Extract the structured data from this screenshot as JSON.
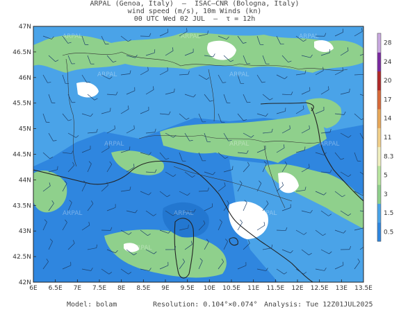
{
  "header": {
    "line1": "ARPAL (Genoa, Italy)  —  ISAC–CNR (Bologna, Italy)",
    "line2": "wind speed (m/s), 10m Winds (kn)",
    "line3": "00 UTC Wed 02 JUL  —  τ = 12h"
  },
  "map": {
    "lat_labels": [
      "47N",
      "46.5N",
      "46N",
      "45.5N",
      "45N",
      "44.5N",
      "44N",
      "43.5N",
      "43N",
      "42.5N",
      "42N"
    ],
    "lon_labels": [
      "6E",
      "6.5E",
      "7E",
      "7.5E",
      "8E",
      "8.5E",
      "9E",
      "9.5E",
      "10E",
      "10.5E",
      "11E",
      "11.5E",
      "12E",
      "12.5E",
      "13E",
      "13.5E"
    ],
    "watermark": "ARPAL",
    "colors": {
      "sea_blue": "#2f86df",
      "light_blue": "#4aa3e8",
      "green": "#8fd08c",
      "white_patch": "#ffffff"
    }
  },
  "colorbar": {
    "ticks": [
      "0.5",
      "1.5",
      "3",
      "5",
      "8.3",
      "11",
      "14",
      "17",
      "20",
      "24",
      "28"
    ],
    "colors": [
      "#2f86df",
      "#4aa3e8",
      "#8fd08c",
      "#b9e6a0",
      "#f0efc0",
      "#f2d08a",
      "#e8a85a",
      "#d86a3a",
      "#b02a2a",
      "#7a2aa0",
      "#c8a8e0"
    ]
  },
  "footer": {
    "model": "Model: bolam",
    "resolution": "Resolution: 0.104°×0.074°",
    "analysis": "Analysis: Tue 12Z01JUL2025"
  }
}
